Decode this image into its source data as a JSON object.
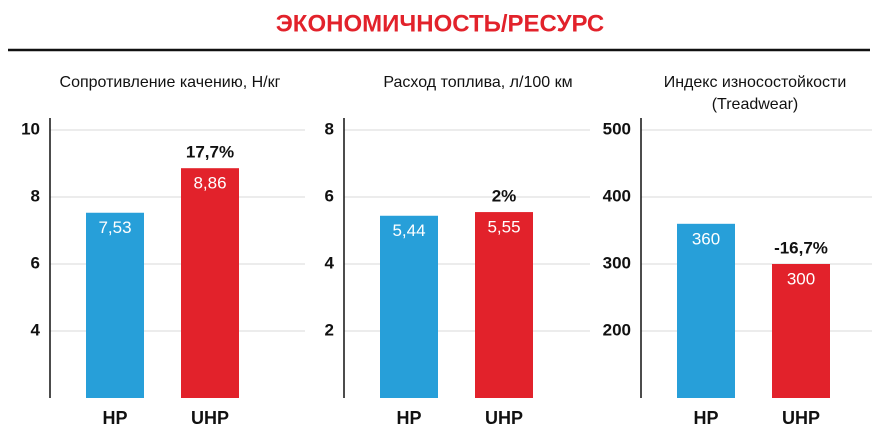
{
  "title": "ЭКОНОМИЧНОСТЬ/РЕСУРС",
  "chart_data": [
    {
      "type": "bar",
      "title": "Сопротивление качению, Н/кг",
      "categories": [
        "HP",
        "UHP"
      ],
      "values": [
        7.53,
        8.86
      ],
      "value_labels": [
        "7,53",
        "8,86"
      ],
      "annotations": [
        null,
        "17,7%"
      ],
      "colors": [
        "#279fd9",
        "#e2222b"
      ],
      "ylim": [
        2,
        10
      ],
      "yticks": [
        4,
        6,
        8,
        10
      ],
      "grid": true
    },
    {
      "type": "bar",
      "title": "Расход топлива, л/100 км",
      "categories": [
        "HP",
        "UHP"
      ],
      "values": [
        5.44,
        5.55
      ],
      "value_labels": [
        "5,44",
        "5,55"
      ],
      "annotations": [
        null,
        "2%"
      ],
      "colors": [
        "#279fd9",
        "#e2222b"
      ],
      "ylim": [
        0,
        8
      ],
      "yticks": [
        2,
        4,
        6,
        8
      ],
      "grid": true
    },
    {
      "type": "bar",
      "title": "Индекс износостойкости",
      "subtitle": "(Treadwear)",
      "categories": [
        "HP",
        "UHP"
      ],
      "values": [
        360,
        300
      ],
      "annotations": [
        null,
        "-16,7%"
      ],
      "colors": [
        "#279fd9",
        "#e2222b"
      ],
      "ylim": [
        100,
        500
      ],
      "yticks": [
        200,
        300,
        400,
        500
      ],
      "grid": true
    }
  ]
}
